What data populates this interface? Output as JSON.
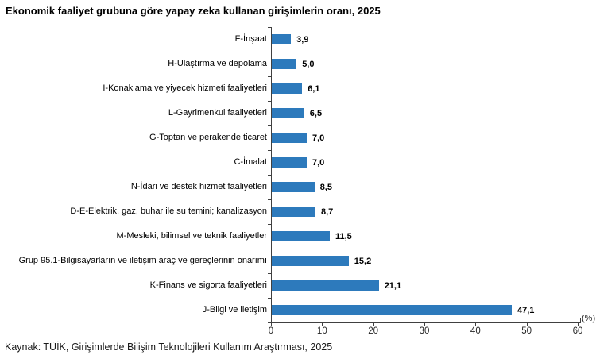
{
  "page": {
    "title": "Ekonomik faaliyet grubuna göre yapay zeka kullanan girişimlerin oranı, 2025",
    "source": "Kaynak: TÜİK, Girişimlerde Bilişim Teknolojileri Kullanım Araştırması, 2025"
  },
  "chart_data": {
    "type": "bar",
    "orientation": "horizontal",
    "title": "Ekonomik faaliyet grubuna göre yapay zeka kullanan girişimlerin oranı, 2025",
    "categories": [
      "F-İnşaat",
      "H-Ulaştırma ve depolama",
      "I-Konaklama ve yiyecek hizmeti faaliyetleri",
      "L-Gayrimenkul faaliyetleri",
      "G-Toptan ve perakende ticaret",
      "C-İmalat",
      "N-İdari ve destek hizmet faaliyetleri",
      "D-E-Elektrik, gaz, buhar ile su temini; kanalizasyon",
      "M-Mesleki, bilimsel ve teknik faaliyetler",
      "Grup 95.1-Bilgisayarların ve iletişim araç ve gereçlerinin onarımı",
      "K-Finans ve sigorta faaliyetleri",
      "J-Bilgi ve iletişim"
    ],
    "values": [
      3.9,
      5.0,
      6.1,
      6.5,
      7.0,
      7.0,
      8.5,
      8.7,
      11.5,
      15.2,
      21.1,
      47.1
    ],
    "value_labels": [
      "3,9",
      "5,0",
      "6,1",
      "6,5",
      "7,0",
      "7,0",
      "8,5",
      "8,7",
      "11,5",
      "15,2",
      "21,1",
      "47,1"
    ],
    "xlabel": "(%)",
    "xlim": [
      0,
      60
    ],
    "xticks": [
      0,
      10,
      20,
      30,
      40,
      50,
      60
    ],
    "bar_color": "#2d7abc",
    "axis_color": "#404040",
    "grid": false,
    "legend": null,
    "source": "Kaynak: TÜİK, Girişimlerde Bilişim Teknolojileri Kullanım Araştırması, 2025"
  }
}
